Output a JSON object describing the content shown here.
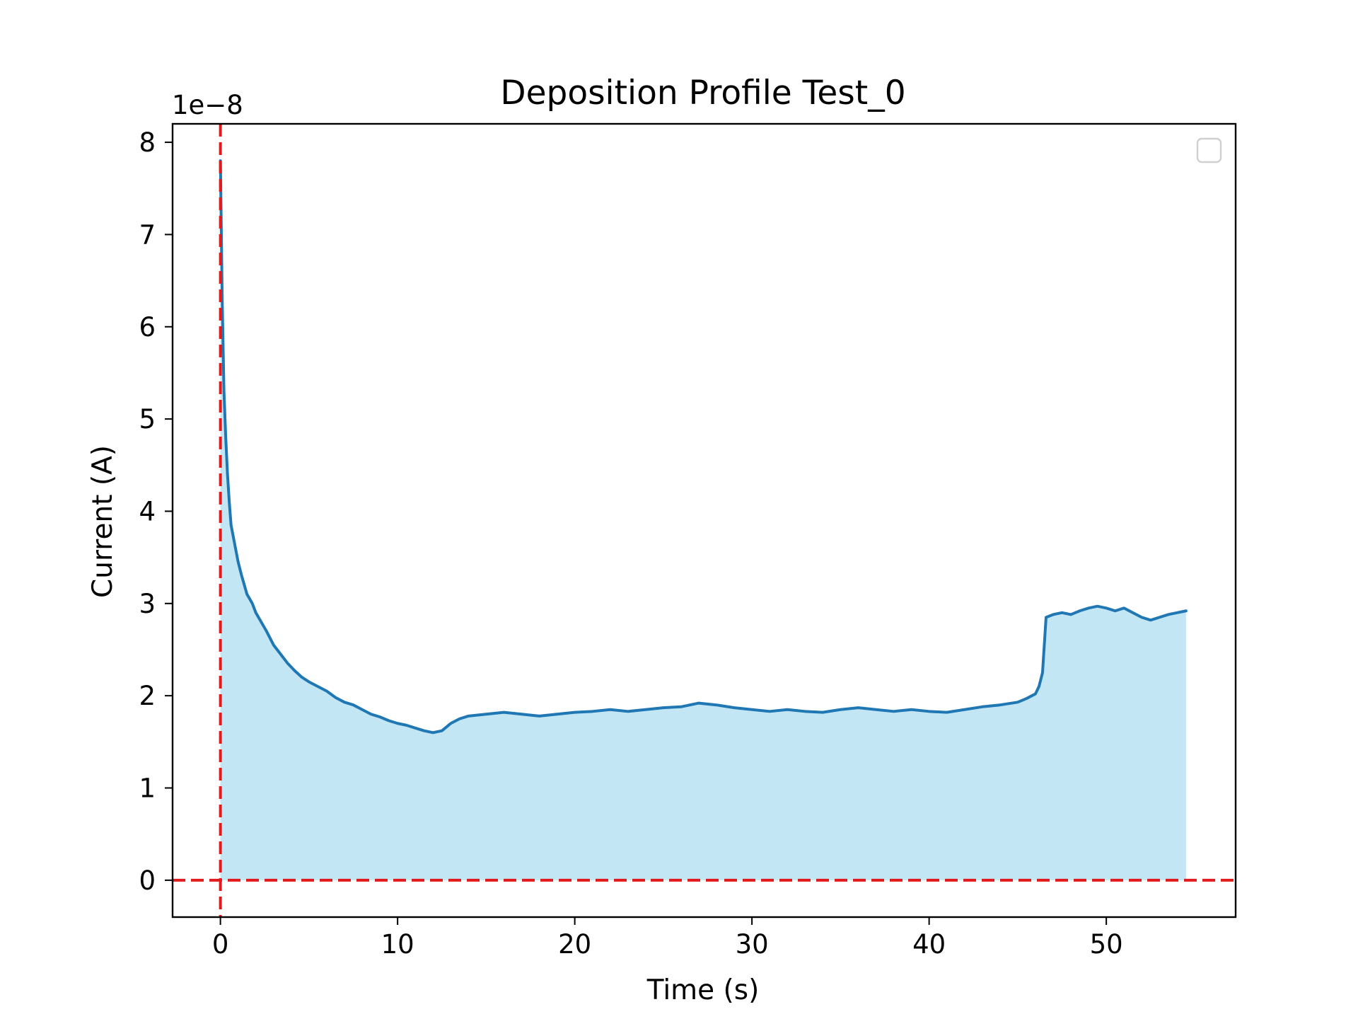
{
  "chart_data": {
    "type": "area",
    "title": "Deposition Profile Test_0",
    "xlabel": "Time (s)",
    "ylabel": "Current (A)",
    "y_offset_label": "1e−8",
    "y_scale_exponent": -8,
    "xlim": [
      -2.7,
      57.3
    ],
    "ylim": [
      -0.4,
      8.2
    ],
    "x_ticks": [
      0,
      10,
      20,
      30,
      40,
      50
    ],
    "x_tick_labels": [
      "0",
      "10",
      "20",
      "30",
      "40",
      "50"
    ],
    "y_ticks": [
      0,
      1,
      2,
      3,
      4,
      5,
      6,
      7,
      8
    ],
    "y_tick_labels": [
      "0",
      "1",
      "2",
      "3",
      "4",
      "5",
      "6",
      "7",
      "8"
    ],
    "grid": false,
    "legend": {
      "placement": "top-right",
      "entries": []
    },
    "colors": {
      "line": "#1f77b4",
      "fill": "#87ceeb",
      "reference_lines": "#e31a1c"
    },
    "reference_lines": [
      {
        "orientation": "vertical",
        "x": 0,
        "style": "dashed"
      },
      {
        "orientation": "horizontal",
        "y": 0,
        "style": "dashed"
      }
    ],
    "series": [
      {
        "x": [
          0,
          0.1,
          0.2,
          0.3,
          0.4,
          0.5,
          0.6,
          0.8,
          1.0,
          1.2,
          1.5,
          1.8,
          2.0,
          2.3,
          2.6,
          3.0,
          3.4,
          3.8,
          4.2,
          4.6,
          5.0,
          5.5,
          6.0,
          6.5,
          7.0,
          7.5,
          8.0,
          8.5,
          9.0,
          9.5,
          10.0,
          10.5,
          11.0,
          11.5,
          12.0,
          12.5,
          13.0,
          13.5,
          14.0,
          15.0,
          16.0,
          17.0,
          18.0,
          19.0,
          20.0,
          21.0,
          22.0,
          23.0,
          24.0,
          25.0,
          26.0,
          27.0,
          28.0,
          29.0,
          30.0,
          31.0,
          32.0,
          33.0,
          34.0,
          35.0,
          36.0,
          37.0,
          38.0,
          39.0,
          40.0,
          41.0,
          42.0,
          43.0,
          44.0,
          45.0,
          45.5,
          46.0,
          46.2,
          46.4,
          46.6,
          47.0,
          47.5,
          48.0,
          48.5,
          49.0,
          49.5,
          50.0,
          50.5,
          51.0,
          51.5,
          52.0,
          52.5,
          53.0,
          53.5,
          54.0,
          54.5
        ],
        "y": [
          7.8,
          6.3,
          5.3,
          4.8,
          4.4,
          4.1,
          3.85,
          3.65,
          3.45,
          3.3,
          3.1,
          3.0,
          2.9,
          2.8,
          2.7,
          2.55,
          2.45,
          2.35,
          2.27,
          2.2,
          2.15,
          2.1,
          2.05,
          1.98,
          1.93,
          1.9,
          1.85,
          1.8,
          1.77,
          1.73,
          1.7,
          1.68,
          1.65,
          1.62,
          1.6,
          1.62,
          1.7,
          1.75,
          1.78,
          1.8,
          1.82,
          1.8,
          1.78,
          1.8,
          1.82,
          1.83,
          1.85,
          1.83,
          1.85,
          1.87,
          1.88,
          1.92,
          1.9,
          1.87,
          1.85,
          1.83,
          1.85,
          1.83,
          1.82,
          1.85,
          1.87,
          1.85,
          1.83,
          1.85,
          1.83,
          1.82,
          1.85,
          1.88,
          1.9,
          1.93,
          1.97,
          2.02,
          2.1,
          2.25,
          2.85,
          2.88,
          2.9,
          2.88,
          2.92,
          2.95,
          2.97,
          2.95,
          2.92,
          2.95,
          2.9,
          2.85,
          2.82,
          2.85,
          2.88,
          2.9,
          2.92
        ]
      }
    ]
  }
}
